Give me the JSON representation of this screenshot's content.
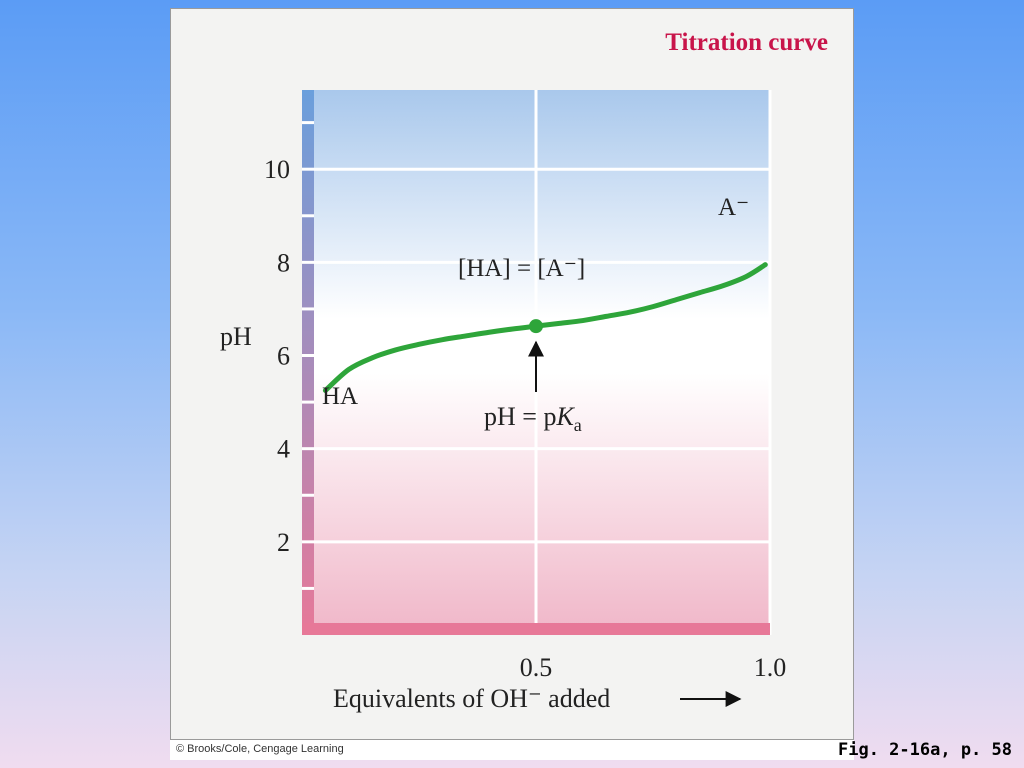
{
  "chart_data": {
    "type": "line",
    "title": "Titration curve",
    "xlabel": "Equivalents of OH⁻ added",
    "ylabel": "pH",
    "xlim": [
      0,
      1.0
    ],
    "ylim": [
      0,
      11.7
    ],
    "x_ticks": [
      {
        "value": 0.5,
        "label": "0.5"
      },
      {
        "value": 1.0,
        "label": "1.0"
      }
    ],
    "y_ticks": [
      {
        "value": 2,
        "label": "2"
      },
      {
        "value": 4,
        "label": "4"
      },
      {
        "value": 6,
        "label": "6"
      },
      {
        "value": 8,
        "label": "8"
      },
      {
        "value": 10,
        "label": "10"
      }
    ],
    "grid": true,
    "series": [
      {
        "x": [
          0.05,
          0.1,
          0.15,
          0.2,
          0.25,
          0.3,
          0.35,
          0.4,
          0.45,
          0.5,
          0.55,
          0.6,
          0.65,
          0.7,
          0.75,
          0.8,
          0.85,
          0.9,
          0.95,
          0.99
        ],
        "y": [
          5.25,
          5.7,
          5.95,
          6.12,
          6.24,
          6.34,
          6.42,
          6.5,
          6.57,
          6.63,
          6.69,
          6.75,
          6.84,
          6.93,
          7.05,
          7.2,
          7.35,
          7.5,
          7.7,
          7.95
        ],
        "color": "#2ea53a"
      }
    ],
    "highlight_point": {
      "x": 0.5,
      "y": 6.63,
      "color": "#2ea53a"
    },
    "annotations": {
      "start_species": "HA",
      "end_species": "A⁻",
      "equal_label": "[HA] = [A⁻]",
      "pka_label_main": "pH = p",
      "pka_label_K": "K",
      "pka_label_sub": "a"
    }
  },
  "footer": {
    "credit": "© Brooks/Cole, Cengage Learning",
    "figure_reference": "Fig. 2-16a, p. 58"
  },
  "colors": {
    "plot_top": "#a9c8ec",
    "plot_mid": "#ffffff",
    "plot_bottom": "#f0b6c8",
    "axis_bar_top": "#6a9fdc",
    "axis_bar_bottom": "#e77898",
    "title": "#c8144a"
  }
}
